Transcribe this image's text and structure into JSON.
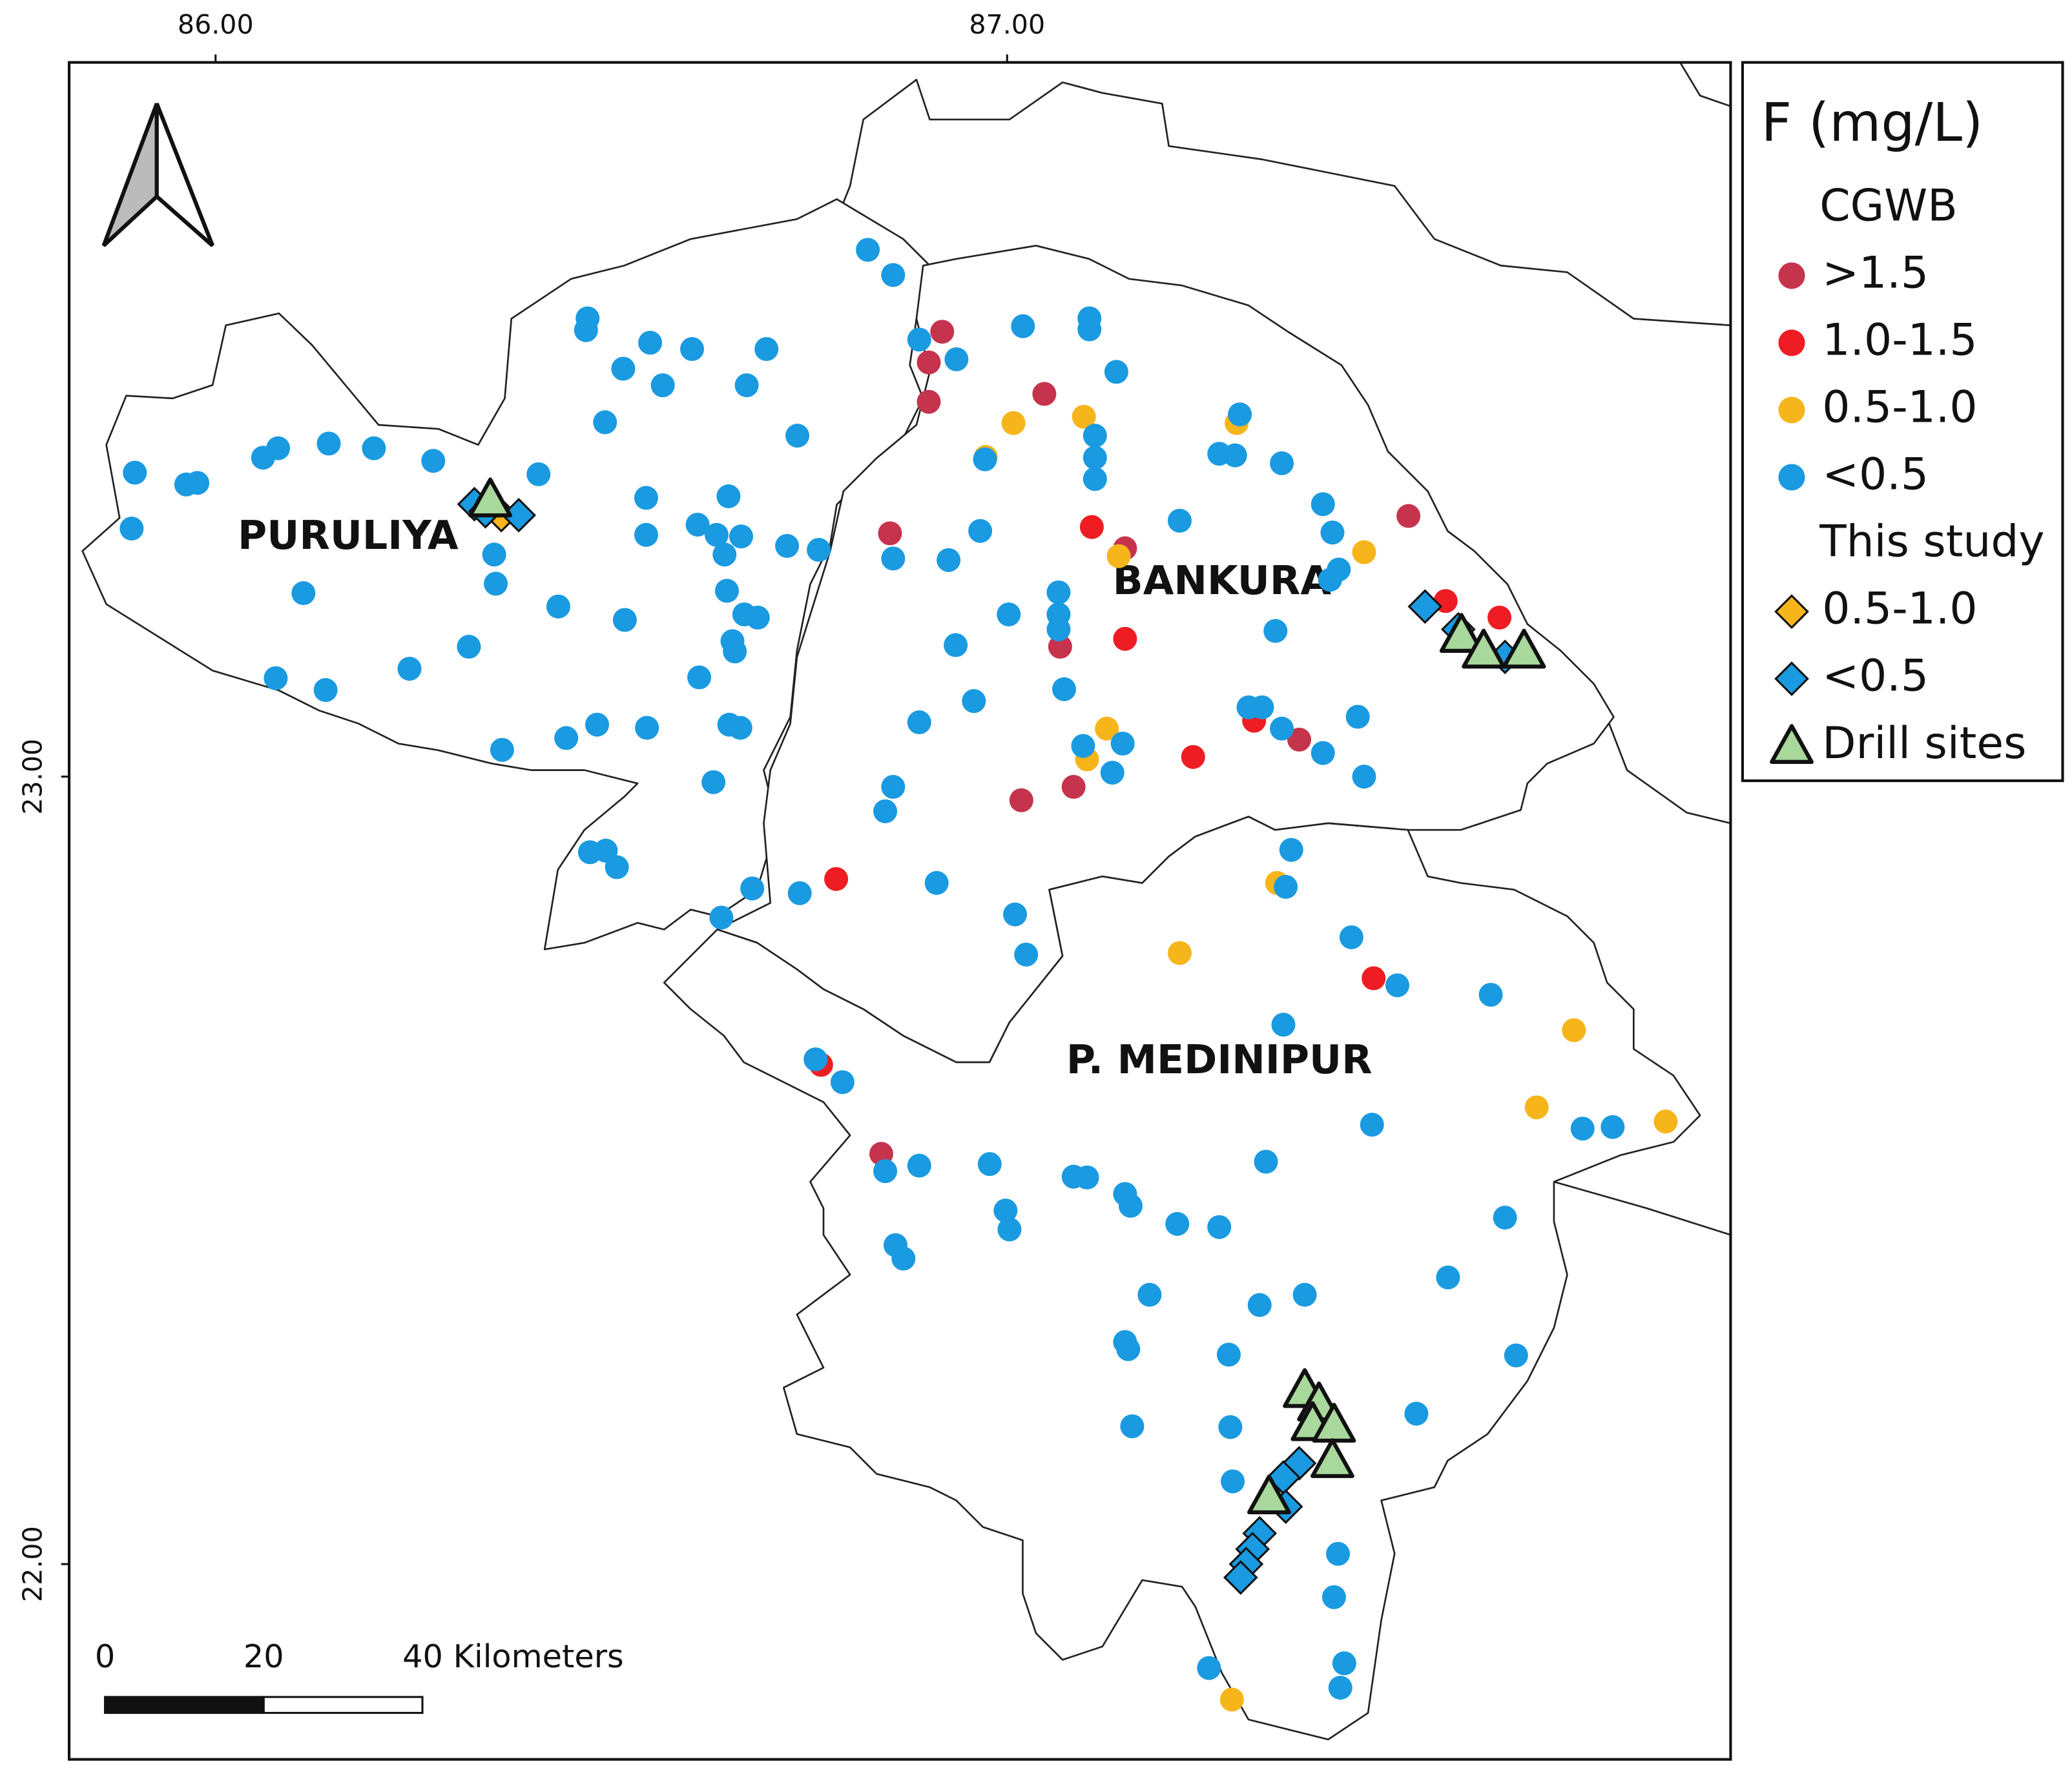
{
  "chart_data": {
    "type": "map",
    "legend_title": "F (mg/L)",
    "xlim": [
      85.815,
      87.914
    ],
    "ylim": [
      21.752,
      23.907
    ],
    "xticks": [
      {
        "value": 86,
        "label": "86.00"
      },
      {
        "value": 87,
        "label": "87.00"
      }
    ],
    "yticks": [
      {
        "value": 22,
        "label": "22.00"
      },
      {
        "value": 23,
        "label": "23.00"
      }
    ],
    "region_labels": [
      "PURULIYA",
      "BANKURA",
      "P. MEDINIPUR"
    ],
    "scale_bar": {
      "ticks": [
        0,
        20,
        {
          "value": 40,
          "label": "40 Kilometers"
        }
      ]
    },
    "groups": [
      {
        "name": "CGWB",
        "series": [
          {
            "name": ">1.5",
            "color": "#c6334d",
            "marker": "circle",
            "lon": [
              86.918,
              86.901,
              86.901,
              87.047,
              86.852,
              87.149,
              87.067,
              87.507,
              87.369,
              87.084,
              87.018,
              86.841
            ],
            "lat": [
              23.565,
              23.526,
              23.476,
              23.486,
              23.309,
              23.29,
              23.165,
              23.331,
              23.047,
              22.987,
              22.97,
              22.521
            ]
          },
          {
            "name": "1.0-1.5",
            "color": "#ee1d23",
            "marker": "circle",
            "lon": [
              87.107,
              87.149,
              87.235,
              87.312,
              86.784,
              86.765,
              87.463,
              87.554,
              87.622
            ],
            "lat": [
              23.317,
              23.175,
              23.025,
              23.071,
              22.87,
              22.634,
              22.744,
              23.223,
              23.202
            ]
          },
          {
            "name": "0.5-1.0",
            "color": "#f7b51c",
            "marker": "circle",
            "lon": [
              86.973,
              87.008,
              87.097,
              87.29,
              87.451,
              87.141,
              87.126,
              87.101,
              87.218,
              87.341,
              87.716,
              87.669,
              87.832,
              87.284
            ],
            "lat": [
              23.406,
              23.449,
              23.457,
              23.449,
              23.285,
              23.28,
              23.061,
              23.022,
              22.776,
              22.865,
              22.678,
              22.58,
              22.562,
              21.828
            ]
          },
          {
            "name": "<0.5",
            "color": "#1a9ae0",
            "marker": "circle",
            "lon": [
              85.898,
              85.894,
              85.963,
              85.977,
              86.06,
              86.079,
              86.143,
              86.2,
              86.275,
              86.111,
              86.076,
              86.139,
              86.245,
              86.32,
              86.352,
              86.354,
              86.408,
              86.433,
              86.362,
              86.443,
              86.47,
              86.468,
              86.515,
              86.549,
              86.565,
              86.602,
              86.492,
              86.544,
              86.544,
              86.517,
              86.482,
              86.545,
              86.473,
              86.493,
              86.507,
              86.609,
              86.633,
              86.648,
              86.664,
              86.643,
              86.646,
              86.668,
              86.685,
              86.653,
              86.656,
              86.611,
              86.649,
              86.663,
              86.629,
              86.671,
              86.696,
              86.735,
              86.722,
              86.762,
              86.678,
              86.738,
              86.639,
              86.824,
              86.856,
              86.889,
              86.936,
              87.02,
              87.104,
              87.104,
              87.138,
              87.111,
              87.111,
              87.111,
              86.966,
              86.926,
              86.856,
              86.972,
              87.002,
              86.935,
              86.958,
              86.889,
              86.856,
              86.846,
              86.911,
              87.01,
              87.024,
              87.065,
              87.065,
              87.065,
              87.072,
              87.096,
              87.146,
              87.133,
              87.218,
              87.268,
              87.288,
              87.294,
              87.347,
              87.399,
              87.411,
              87.419,
              87.408,
              87.339,
              87.305,
              87.322,
              87.347,
              87.399,
              87.443,
              87.451,
              87.359,
              87.352,
              87.435,
              87.493,
              87.611,
              87.349,
              87.461,
              87.727,
              87.765,
              86.792,
              86.758,
              86.846,
              86.889,
              86.978,
              86.998,
              87.003,
              87.084,
              87.101,
              87.149,
              87.156,
              87.215,
              87.268,
              87.327,
              86.859,
              86.869,
              87.18,
              87.319,
              87.376,
              87.557,
              87.629,
              87.643,
              87.149,
              87.153,
              87.28,
              87.158,
              87.282,
              87.285,
              87.517,
              87.418,
              87.413,
              87.426,
              87.421,
              87.255
            ],
            "lat": [
              23.386,
              23.315,
              23.371,
              23.373,
              23.405,
              23.417,
              23.423,
              23.417,
              23.401,
              23.233,
              23.125,
              23.11,
              23.137,
              23.165,
              23.282,
              23.245,
              23.384,
              23.216,
              23.034,
              23.049,
              23.582,
              23.567,
              23.518,
              23.551,
              23.497,
              23.543,
              23.45,
              23.354,
              23.307,
              23.199,
              23.066,
              23.062,
              22.904,
              22.906,
              22.885,
              23.32,
              23.307,
              23.356,
              23.305,
              23.282,
              23.236,
              23.206,
              23.202,
              23.172,
              23.159,
              23.126,
              23.066,
              23.062,
              22.993,
              23.497,
              23.543,
              23.433,
              23.293,
              23.288,
              22.858,
              22.852,
              22.821,
              23.669,
              23.637,
              23.555,
              23.53,
              23.572,
              23.582,
              23.568,
              23.514,
              23.433,
              23.405,
              23.378,
              23.312,
              23.275,
              23.277,
              23.403,
              23.206,
              23.167,
              23.096,
              23.069,
              22.987,
              22.956,
              22.865,
              22.825,
              22.774,
              23.234,
              23.206,
              23.187,
              23.111,
              23.039,
              23.042,
              23.005,
              23.325,
              23.41,
              23.408,
              23.46,
              23.398,
              23.346,
              23.31,
              23.263,
              23.25,
              23.185,
              23.088,
              23.088,
              23.061,
              23.03,
              23.076,
              23.0,
              22.907,
              22.86,
              22.796,
              22.735,
              22.723,
              22.685,
              22.558,
              22.553,
              22.555,
              22.612,
              22.641,
              22.499,
              22.506,
              22.508,
              22.449,
              22.425,
              22.492,
              22.491,
              22.47,
              22.455,
              22.432,
              22.428,
              22.511,
              22.405,
              22.388,
              22.342,
              22.329,
              22.342,
              22.364,
              22.44,
              22.265,
              22.282,
              22.273,
              22.266,
              22.175,
              22.174,
              22.105,
              22.191,
              22.013,
              21.958,
              21.874,
              21.843,
              21.868
            ]
          }
        ]
      },
      {
        "name": "This study",
        "series": [
          {
            "name": "0.5-1.0",
            "color": "#f7b51c",
            "marker": "diamond",
            "lon": [
              86.361
            ],
            "lat": [
              23.332
            ]
          },
          {
            "name": "<0.5",
            "color": "#1a9ae0",
            "marker": "diamond",
            "lon": [
              86.327,
              86.341,
              86.383,
              87.528,
              87.57,
              87.629,
              87.369,
              87.349,
              87.352,
              87.319,
              87.31,
              87.302,
              87.295
            ],
            "lat": [
              23.346,
              23.337,
              23.332,
              23.216,
              23.187,
              23.152,
              22.128,
              22.11,
              22.073,
              22.039,
              22.019,
              22.0,
              21.983
            ]
          },
          {
            "name": "Drill sites",
            "color": "#a8d89c",
            "marker": "triangle",
            "lon": [
              86.347,
              87.574,
              87.602,
              87.653,
              87.376,
              87.394,
              87.386,
              87.413,
              87.411,
              87.331
            ],
            "lat": [
              23.352,
              23.18,
              23.16,
              23.16,
              22.221,
              22.204,
              22.179,
              22.177,
              22.132,
              22.086
            ]
          }
        ]
      }
    ]
  }
}
